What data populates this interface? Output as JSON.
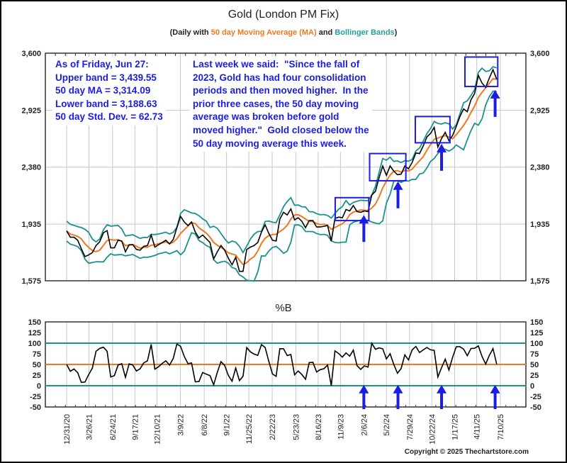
{
  "title": "Gold (London PM Fix)",
  "subtitle": {
    "pre": "(Daily with ",
    "ma": "50 day Moving Average (MA)",
    "mid": " and ",
    "bb": "Bollinger Bands",
    "post": ")"
  },
  "lower_title": "%B",
  "copyright": "Copyright © 2025 Thechartstore.com",
  "notes": {
    "stats": [
      "As of Friday, Jun 27:",
      "Upper band = 3,439.55",
      "50 day MA = 3,314.09",
      "Lower band = 3,188.63",
      "50 day Std. Dev. = 62.73"
    ],
    "comment": [
      "Last week we said:  \"Since the fall of",
      "2023, Gold has had four consolidation",
      "periods and then moved higher.  In the",
      "prior three cases, the 50 day moving",
      "average was broken before gold",
      "moved higher.\"  Gold closed below the",
      "50 day moving average this week."
    ]
  },
  "colors": {
    "price": "#000000",
    "ma": "#f07820",
    "bands": "#1a9090",
    "annotation": "#1c1ce6",
    "grid": "#c8c8c8"
  },
  "chart_data": [
    {
      "type": "line",
      "title": "Gold (London PM Fix)",
      "yscale": "log",
      "ylim": [
        1575,
        3600
      ],
      "yticks": [
        1575,
        1935,
        2380,
        2925,
        3600
      ],
      "ytick_labels": [
        "1,575",
        "1,935",
        "2,380",
        "2,925",
        "3,600"
      ],
      "xticks": [
        "2020-12-31",
        "2021-03-26",
        "2021-06-24",
        "2021-09-17",
        "2021-12-10",
        "2022-03-09",
        "2022-06-08",
        "2022-09-01",
        "2022-11-25",
        "2023-02-22",
        "2023-05-23",
        "2023-08-16",
        "2023-11-09",
        "2024-02-06",
        "2024-05-02",
        "2024-07-29",
        "2024-10-22",
        "2025-01-17",
        "2025-04-11",
        "2025-07-10"
      ],
      "xtick_labels": [
        "12/31/20",
        "3/26/21",
        "6/24/21",
        "9/17/21",
        "12/10/21",
        "3/9/22",
        "6/8/22",
        "9/1/22",
        "11/25/22",
        "2/22/23",
        "5/23/23",
        "8/16/23",
        "11/9/23",
        "2/6/24",
        "5/2/24",
        "7/29/24",
        "10/22/24",
        "1/17/25",
        "4/11/25",
        "7/10/25"
      ],
      "grid": true,
      "series_start": "2020-12-31",
      "series_frequency": "biweekly",
      "series": [
        {
          "role": "price",
          "values": [
            1888,
            1845,
            1845,
            1825,
            1770,
            1720,
            1730,
            1745,
            1790,
            1815,
            1875,
            1890,
            1775,
            1775,
            1825,
            1820,
            1750,
            1795,
            1795,
            1765,
            1760,
            1785,
            1790,
            1860,
            1780,
            1795,
            1810,
            1825,
            1800,
            1830,
            1910,
            1990,
            1950,
            1925,
            1950,
            1880,
            1840,
            1860,
            1835,
            1810,
            1705,
            1750,
            1790,
            1760,
            1710,
            1670,
            1715,
            1630,
            1630,
            1765,
            1780,
            1790,
            1810,
            1880,
            1930,
            1870,
            1825,
            1820,
            1970,
            2020,
            2000,
            2045,
            1965,
            1980,
            1955,
            1910,
            1960,
            1960,
            1915,
            1915,
            1920,
            1925,
            1820,
            1975,
            1985,
            1980,
            2040,
            2030,
            2070,
            2025,
            2020,
            2030,
            2025,
            2150,
            2180,
            2290,
            2390,
            2310,
            2390,
            2345,
            2315,
            2320,
            2390,
            2365,
            2420,
            2505,
            2500,
            2570,
            2655,
            2690,
            2750,
            2560,
            2640,
            2700,
            2620,
            2670,
            2760,
            2860,
            2940,
            2910,
            3040,
            3110,
            3320,
            3230,
            3180,
            3290,
            3390,
            3275
          ]
        },
        {
          "role": "50 day Moving Average (MA)"
        },
        {
          "role": "Bollinger Bands"
        }
      ],
      "annotations": {
        "boxes": [
          {
            "from": "2023-10-20",
            "to": "2024-02-25",
            "low": 1960,
            "high": 2130
          },
          {
            "from": "2024-02-28",
            "to": "2024-07-15",
            "low": 2265,
            "high": 2500
          },
          {
            "from": "2024-08-20",
            "to": "2024-12-30",
            "low": 2600,
            "high": 2860
          },
          {
            "from": "2025-02-25",
            "to": "2025-06-30",
            "low": 3190,
            "high": 3550
          }
        ],
        "arrows": [
          {
            "date": "2024-02-06",
            "tip": 2000
          },
          {
            "date": "2024-06-15",
            "tip": 2260
          },
          {
            "date": "2024-11-28",
            "tip": 2590
          },
          {
            "date": "2025-06-20",
            "tip": 3150
          }
        ]
      }
    },
    {
      "type": "line",
      "title": "%B",
      "ylim": [
        -50,
        150
      ],
      "yticks": [
        -50,
        -25,
        0,
        25,
        50,
        75,
        100,
        125,
        150
      ],
      "ytick_labels": [
        "-50",
        "-25",
        "0",
        "25",
        "50",
        "75",
        "100",
        "125",
        "150"
      ],
      "reference_lines": [
        {
          "value": 100,
          "color": "#1a9090"
        },
        {
          "value": 50,
          "color": "#f07820"
        },
        {
          "value": 0,
          "color": "#1a9090"
        }
      ],
      "series": [
        {
          "role": "%B (computed from price and Bollinger Bands)"
        }
      ],
      "arrows": [
        "2024-02-06",
        "2024-06-15",
        "2024-11-28",
        "2025-06-20"
      ]
    }
  ]
}
